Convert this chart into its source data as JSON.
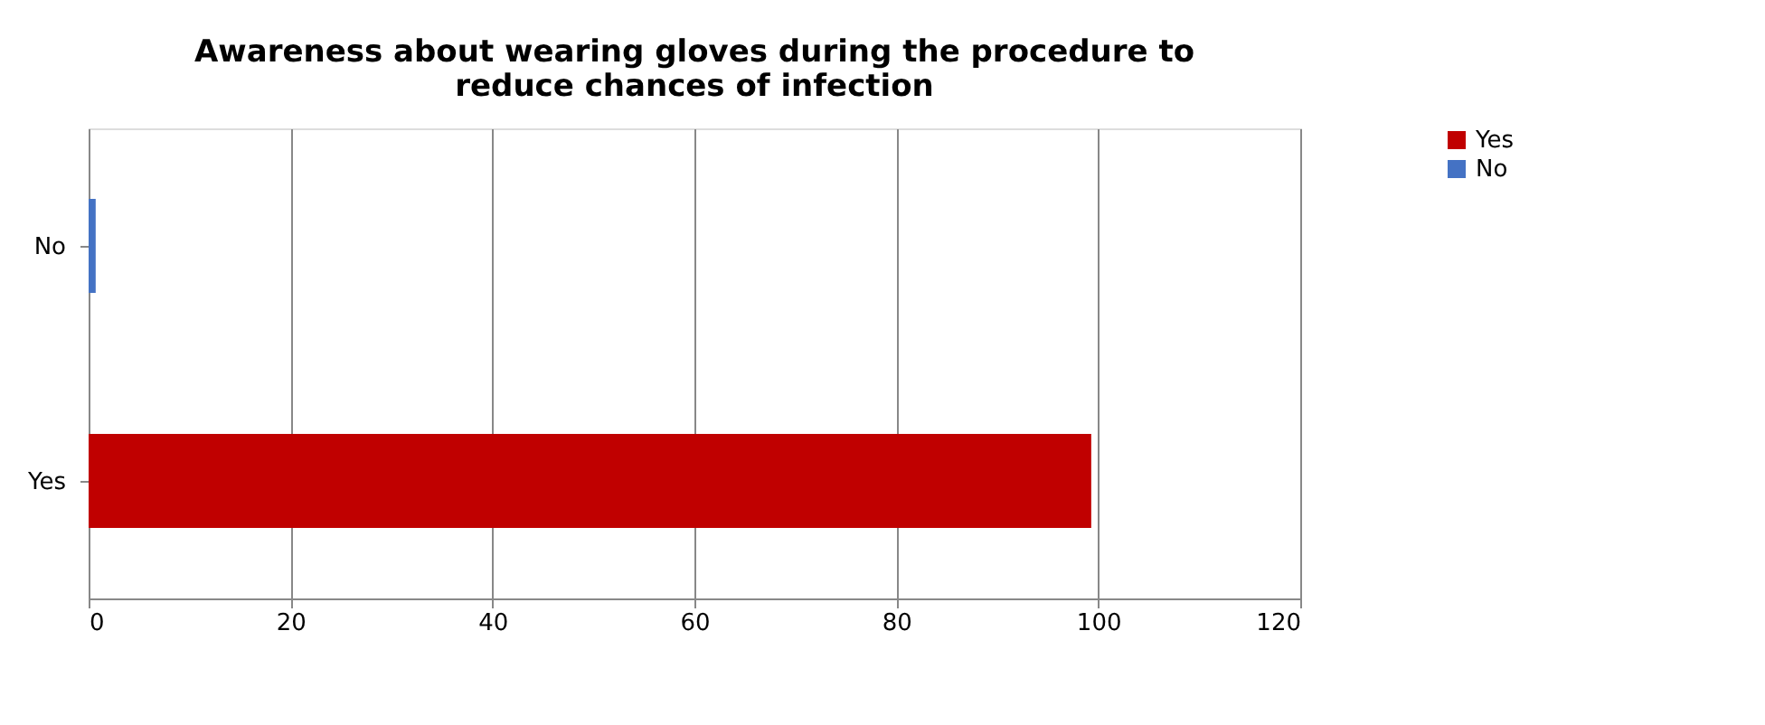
{
  "chart_data": {
    "type": "bar",
    "orientation": "horizontal",
    "title": "Awareness about wearing gloves during the procedure to reduce chances of infection",
    "categories": [
      "No",
      "Yes"
    ],
    "series": [
      {
        "name": "Yes",
        "color": "#c00000",
        "values": [
          null,
          99.3
        ]
      },
      {
        "name": "No",
        "color": "#4472c4",
        "values": [
          0.7,
          null
        ]
      }
    ],
    "xlim": [
      0,
      120
    ],
    "xticks": [
      0,
      20,
      40,
      60,
      80,
      100,
      120
    ],
    "grid": "x",
    "legend": "right"
  }
}
